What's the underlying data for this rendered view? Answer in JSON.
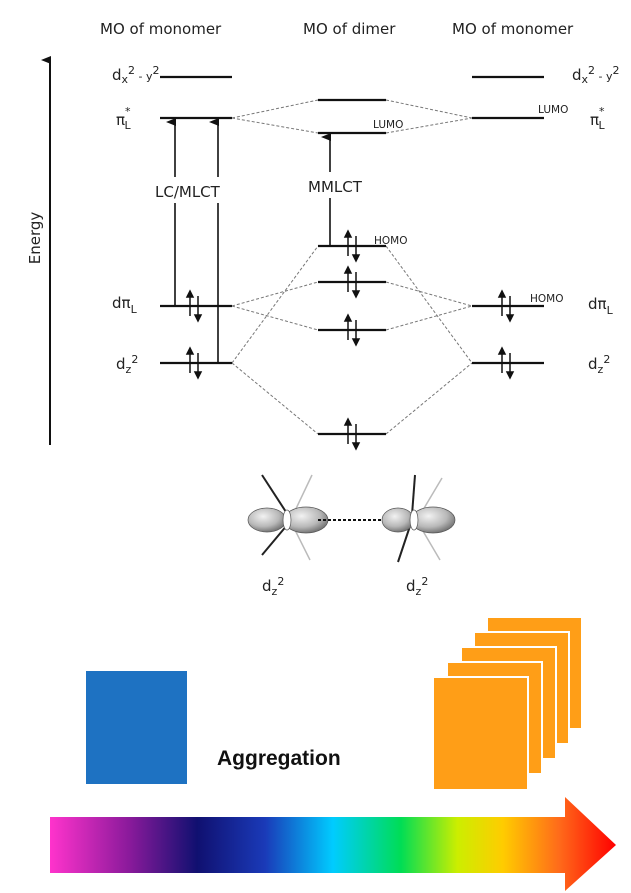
{
  "headers": {
    "left": "MO of monomer",
    "middle": "MO of dimer",
    "right": "MO of monomer"
  },
  "axis": {
    "label": "Energy"
  },
  "levels": {
    "dx2y2": {
      "base": "d",
      "sub": "x",
      "sup1": "2",
      "mid": " - y",
      "sup2": "2"
    },
    "pi_star": {
      "main": "π",
      "sup": "*",
      "sub": "L"
    },
    "d_pi": {
      "main": "dπ",
      "sub": "L"
    },
    "dz2": {
      "main": "d",
      "sub": "z",
      "sup": "2"
    }
  },
  "tags": {
    "lumo": "LUMO",
    "homo": "HOMO"
  },
  "transitions": {
    "monomer": "LC/MLCT",
    "dimer": "MMLCT"
  },
  "orbital_labels": {
    "left": {
      "main": "d",
      "sub": "z",
      "sup": "2"
    },
    "right": {
      "main": "d",
      "sub": "z",
      "sup": "2"
    }
  },
  "aggregation": {
    "label": "Aggregation",
    "monomer_color": "#1e72c2",
    "aggregate_color": "#ff9e17",
    "spectrum_colors": [
      "#ff33cc",
      "#8a1a9b",
      "#101070",
      "#1a3ab8",
      "#00ccff",
      "#00dd55",
      "#ccee00",
      "#ffcc00",
      "#ff6a1a",
      "#ff0000"
    ]
  }
}
